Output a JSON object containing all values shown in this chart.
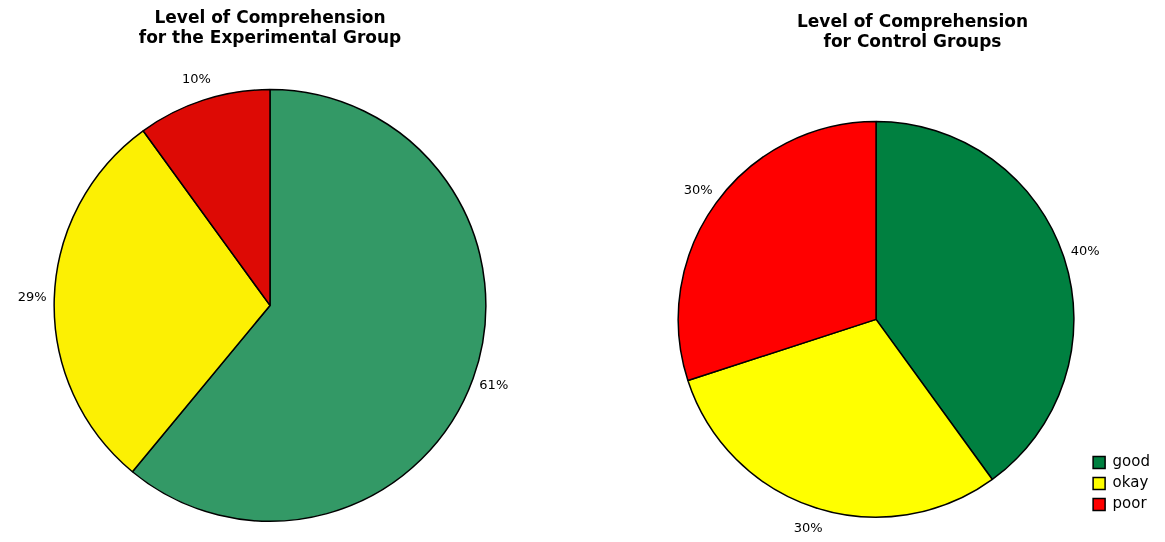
{
  "chart_data": [
    {
      "type": "pie",
      "title": "Level of Comprehension\nfor the Experimental Group",
      "categories": [
        null,
        null,
        null
      ],
      "values": [
        61,
        29,
        10
      ],
      "value_labels": [
        "61%",
        "29%",
        "10%"
      ],
      "colors": [
        "#339966",
        "#fcf003",
        "#dd0a05"
      ],
      "legend": false
    },
    {
      "type": "pie",
      "title": "Level of Comprehension\nfor Control Groups",
      "categories": [
        "good",
        "okay",
        "poor"
      ],
      "values": [
        40,
        30,
        30
      ],
      "value_labels": [
        "40%",
        "30%",
        "30%"
      ],
      "colors": [
        "#008040",
        "#ffff00",
        "#ff0000"
      ],
      "legend": "bottom right"
    }
  ]
}
